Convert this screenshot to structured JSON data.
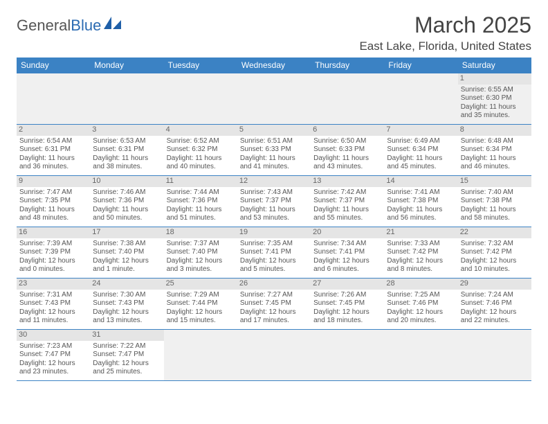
{
  "header": {
    "logo_part1": "General",
    "logo_part2": "Blue",
    "month_title": "March 2025",
    "location": "East Lake, Florida, United States"
  },
  "colors": {
    "header_bg": "#3b82c4",
    "header_text": "#ffffff",
    "cell_border": "#3b82c4",
    "daynum_bg": "#e5e5e5",
    "text": "#555555",
    "logo_gray": "#555555",
    "logo_blue": "#2b6bb2"
  },
  "calendar": {
    "day_headers": [
      "Sunday",
      "Monday",
      "Tuesday",
      "Wednesday",
      "Thursday",
      "Friday",
      "Saturday"
    ],
    "weeks": [
      [
        null,
        null,
        null,
        null,
        null,
        null,
        {
          "num": "1",
          "sunrise": "Sunrise: 6:55 AM",
          "sunset": "Sunset: 6:30 PM",
          "daylight": "Daylight: 11 hours and 35 minutes."
        }
      ],
      [
        {
          "num": "2",
          "sunrise": "Sunrise: 6:54 AM",
          "sunset": "Sunset: 6:31 PM",
          "daylight": "Daylight: 11 hours and 36 minutes."
        },
        {
          "num": "3",
          "sunrise": "Sunrise: 6:53 AM",
          "sunset": "Sunset: 6:31 PM",
          "daylight": "Daylight: 11 hours and 38 minutes."
        },
        {
          "num": "4",
          "sunrise": "Sunrise: 6:52 AM",
          "sunset": "Sunset: 6:32 PM",
          "daylight": "Daylight: 11 hours and 40 minutes."
        },
        {
          "num": "5",
          "sunrise": "Sunrise: 6:51 AM",
          "sunset": "Sunset: 6:33 PM",
          "daylight": "Daylight: 11 hours and 41 minutes."
        },
        {
          "num": "6",
          "sunrise": "Sunrise: 6:50 AM",
          "sunset": "Sunset: 6:33 PM",
          "daylight": "Daylight: 11 hours and 43 minutes."
        },
        {
          "num": "7",
          "sunrise": "Sunrise: 6:49 AM",
          "sunset": "Sunset: 6:34 PM",
          "daylight": "Daylight: 11 hours and 45 minutes."
        },
        {
          "num": "8",
          "sunrise": "Sunrise: 6:48 AM",
          "sunset": "Sunset: 6:34 PM",
          "daylight": "Daylight: 11 hours and 46 minutes."
        }
      ],
      [
        {
          "num": "9",
          "sunrise": "Sunrise: 7:47 AM",
          "sunset": "Sunset: 7:35 PM",
          "daylight": "Daylight: 11 hours and 48 minutes."
        },
        {
          "num": "10",
          "sunrise": "Sunrise: 7:46 AM",
          "sunset": "Sunset: 7:36 PM",
          "daylight": "Daylight: 11 hours and 50 minutes."
        },
        {
          "num": "11",
          "sunrise": "Sunrise: 7:44 AM",
          "sunset": "Sunset: 7:36 PM",
          "daylight": "Daylight: 11 hours and 51 minutes."
        },
        {
          "num": "12",
          "sunrise": "Sunrise: 7:43 AM",
          "sunset": "Sunset: 7:37 PM",
          "daylight": "Daylight: 11 hours and 53 minutes."
        },
        {
          "num": "13",
          "sunrise": "Sunrise: 7:42 AM",
          "sunset": "Sunset: 7:37 PM",
          "daylight": "Daylight: 11 hours and 55 minutes."
        },
        {
          "num": "14",
          "sunrise": "Sunrise: 7:41 AM",
          "sunset": "Sunset: 7:38 PM",
          "daylight": "Daylight: 11 hours and 56 minutes."
        },
        {
          "num": "15",
          "sunrise": "Sunrise: 7:40 AM",
          "sunset": "Sunset: 7:38 PM",
          "daylight": "Daylight: 11 hours and 58 minutes."
        }
      ],
      [
        {
          "num": "16",
          "sunrise": "Sunrise: 7:39 AM",
          "sunset": "Sunset: 7:39 PM",
          "daylight": "Daylight: 12 hours and 0 minutes."
        },
        {
          "num": "17",
          "sunrise": "Sunrise: 7:38 AM",
          "sunset": "Sunset: 7:40 PM",
          "daylight": "Daylight: 12 hours and 1 minute."
        },
        {
          "num": "18",
          "sunrise": "Sunrise: 7:37 AM",
          "sunset": "Sunset: 7:40 PM",
          "daylight": "Daylight: 12 hours and 3 minutes."
        },
        {
          "num": "19",
          "sunrise": "Sunrise: 7:35 AM",
          "sunset": "Sunset: 7:41 PM",
          "daylight": "Daylight: 12 hours and 5 minutes."
        },
        {
          "num": "20",
          "sunrise": "Sunrise: 7:34 AM",
          "sunset": "Sunset: 7:41 PM",
          "daylight": "Daylight: 12 hours and 6 minutes."
        },
        {
          "num": "21",
          "sunrise": "Sunrise: 7:33 AM",
          "sunset": "Sunset: 7:42 PM",
          "daylight": "Daylight: 12 hours and 8 minutes."
        },
        {
          "num": "22",
          "sunrise": "Sunrise: 7:32 AM",
          "sunset": "Sunset: 7:42 PM",
          "daylight": "Daylight: 12 hours and 10 minutes."
        }
      ],
      [
        {
          "num": "23",
          "sunrise": "Sunrise: 7:31 AM",
          "sunset": "Sunset: 7:43 PM",
          "daylight": "Daylight: 12 hours and 11 minutes."
        },
        {
          "num": "24",
          "sunrise": "Sunrise: 7:30 AM",
          "sunset": "Sunset: 7:43 PM",
          "daylight": "Daylight: 12 hours and 13 minutes."
        },
        {
          "num": "25",
          "sunrise": "Sunrise: 7:29 AM",
          "sunset": "Sunset: 7:44 PM",
          "daylight": "Daylight: 12 hours and 15 minutes."
        },
        {
          "num": "26",
          "sunrise": "Sunrise: 7:27 AM",
          "sunset": "Sunset: 7:45 PM",
          "daylight": "Daylight: 12 hours and 17 minutes."
        },
        {
          "num": "27",
          "sunrise": "Sunrise: 7:26 AM",
          "sunset": "Sunset: 7:45 PM",
          "daylight": "Daylight: 12 hours and 18 minutes."
        },
        {
          "num": "28",
          "sunrise": "Sunrise: 7:25 AM",
          "sunset": "Sunset: 7:46 PM",
          "daylight": "Daylight: 12 hours and 20 minutes."
        },
        {
          "num": "29",
          "sunrise": "Sunrise: 7:24 AM",
          "sunset": "Sunset: 7:46 PM",
          "daylight": "Daylight: 12 hours and 22 minutes."
        }
      ],
      [
        {
          "num": "30",
          "sunrise": "Sunrise: 7:23 AM",
          "sunset": "Sunset: 7:47 PM",
          "daylight": "Daylight: 12 hours and 23 minutes."
        },
        {
          "num": "31",
          "sunrise": "Sunrise: 7:22 AM",
          "sunset": "Sunset: 7:47 PM",
          "daylight": "Daylight: 12 hours and 25 minutes."
        },
        null,
        null,
        null,
        null,
        null
      ]
    ]
  }
}
